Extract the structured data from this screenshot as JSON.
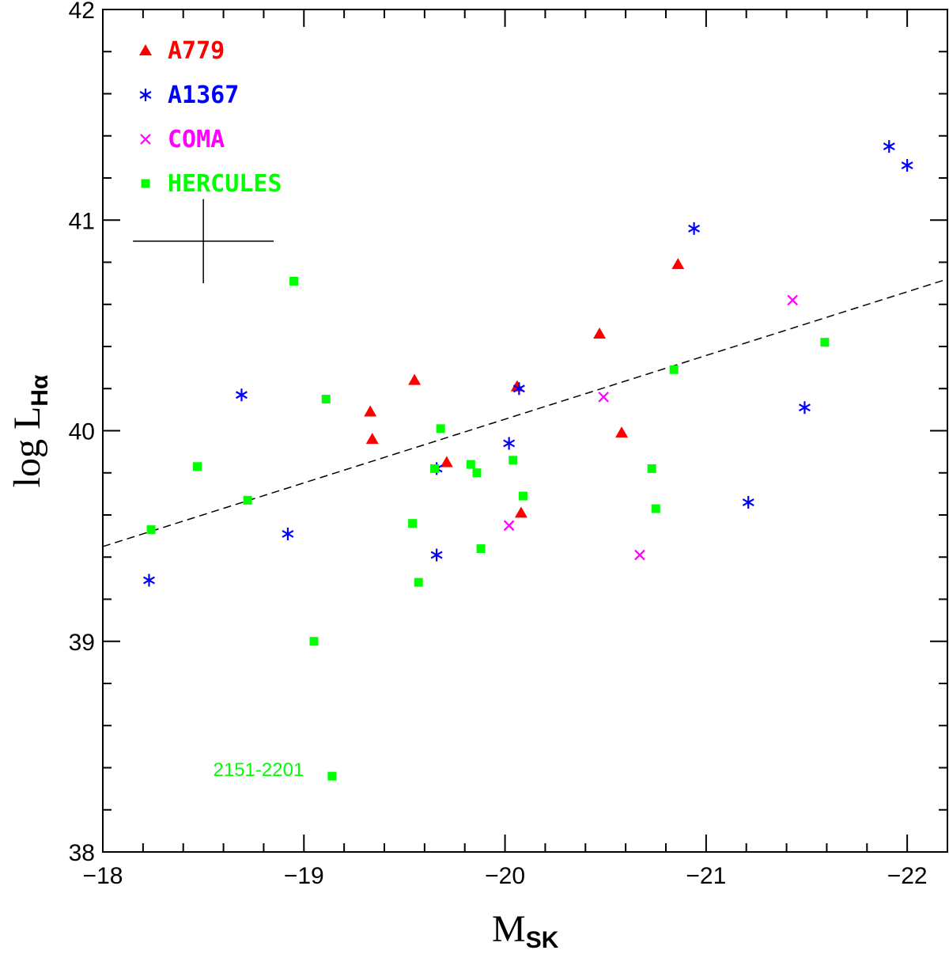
{
  "chart_data": {
    "type": "scatter",
    "xlabel": "M",
    "xlabel_sub": "SK",
    "ylabel": "log L",
    "ylabel_sub": "Hα",
    "xlim": [
      -18,
      -22.2
    ],
    "ylim": [
      38,
      42
    ],
    "x_ticks": [
      {
        "value": -18,
        "label": "−18"
      },
      {
        "value": -19,
        "label": "−19"
      },
      {
        "value": -20,
        "label": "−20"
      },
      {
        "value": -21,
        "label": "−21"
      },
      {
        "value": -22,
        "label": "−22"
      }
    ],
    "y_ticks": [
      {
        "value": 38,
        "label": "38"
      },
      {
        "value": 39,
        "label": "39"
      },
      {
        "value": 40,
        "label": "40"
      },
      {
        "value": 41,
        "label": "41"
      },
      {
        "value": 42,
        "label": "42"
      }
    ],
    "fit_line": {
      "x": [
        -18,
        -22.2
      ],
      "y": [
        39.45,
        40.72
      ],
      "style": "dashed"
    },
    "error_bar": {
      "x": -18.5,
      "y": 40.9,
      "xerr": 0.35,
      "yerr": 0.2
    },
    "series": [
      {
        "name": "A779",
        "color": "#ff0000",
        "marker": "triangle",
        "points": [
          {
            "x": -19.33,
            "y": 40.09
          },
          {
            "x": -19.34,
            "y": 39.96
          },
          {
            "x": -19.55,
            "y": 40.24
          },
          {
            "x": -19.71,
            "y": 39.85
          },
          {
            "x": -20.06,
            "y": 40.21
          },
          {
            "x": -20.08,
            "y": 39.61
          },
          {
            "x": -20.47,
            "y": 40.46
          },
          {
            "x": -20.58,
            "y": 39.99
          },
          {
            "x": -20.86,
            "y": 40.79
          }
        ]
      },
      {
        "name": "A1367",
        "color": "#0000ff",
        "marker": "asterisk",
        "points": [
          {
            "x": -18.23,
            "y": 39.29
          },
          {
            "x": -18.69,
            "y": 40.17
          },
          {
            "x": -18.92,
            "y": 39.51
          },
          {
            "x": -19.66,
            "y": 39.41
          },
          {
            "x": -19.66,
            "y": 39.82
          },
          {
            "x": -20.02,
            "y": 39.94
          },
          {
            "x": -20.07,
            "y": 40.2
          },
          {
            "x": -20.94,
            "y": 40.96
          },
          {
            "x": -21.21,
            "y": 39.66
          },
          {
            "x": -21.49,
            "y": 40.11
          },
          {
            "x": -21.91,
            "y": 41.35
          },
          {
            "x": -22.0,
            "y": 41.26
          }
        ]
      },
      {
        "name": "COMA",
        "color": "#ff00ff",
        "marker": "cross",
        "points": [
          {
            "x": -20.02,
            "y": 39.55
          },
          {
            "x": -20.49,
            "y": 40.16
          },
          {
            "x": -20.67,
            "y": 39.41
          },
          {
            "x": -21.43,
            "y": 40.62
          }
        ]
      },
      {
        "name": "HERCULES",
        "color": "#00ff00",
        "marker": "square",
        "points": [
          {
            "x": -18.24,
            "y": 39.53
          },
          {
            "x": -18.47,
            "y": 39.83
          },
          {
            "x": -18.72,
            "y": 39.67
          },
          {
            "x": -18.95,
            "y": 40.71
          },
          {
            "x": -19.05,
            "y": 39.0
          },
          {
            "x": -19.11,
            "y": 40.15
          },
          {
            "x": -19.14,
            "y": 38.36
          },
          {
            "x": -19.54,
            "y": 39.56
          },
          {
            "x": -19.57,
            "y": 39.28
          },
          {
            "x": -19.65,
            "y": 39.82
          },
          {
            "x": -19.68,
            "y": 40.01
          },
          {
            "x": -19.83,
            "y": 39.84
          },
          {
            "x": -19.86,
            "y": 39.8
          },
          {
            "x": -19.88,
            "y": 39.44
          },
          {
            "x": -20.04,
            "y": 39.86
          },
          {
            "x": -20.09,
            "y": 39.69
          },
          {
            "x": -20.73,
            "y": 39.82
          },
          {
            "x": -20.75,
            "y": 39.63
          },
          {
            "x": -20.84,
            "y": 40.29
          },
          {
            "x": -21.59,
            "y": 40.42
          }
        ]
      }
    ],
    "annotations": [
      {
        "text": "2151-2201",
        "x": -19.0,
        "y": 38.36,
        "color": "#00ff00",
        "anchor": "end"
      }
    ]
  }
}
